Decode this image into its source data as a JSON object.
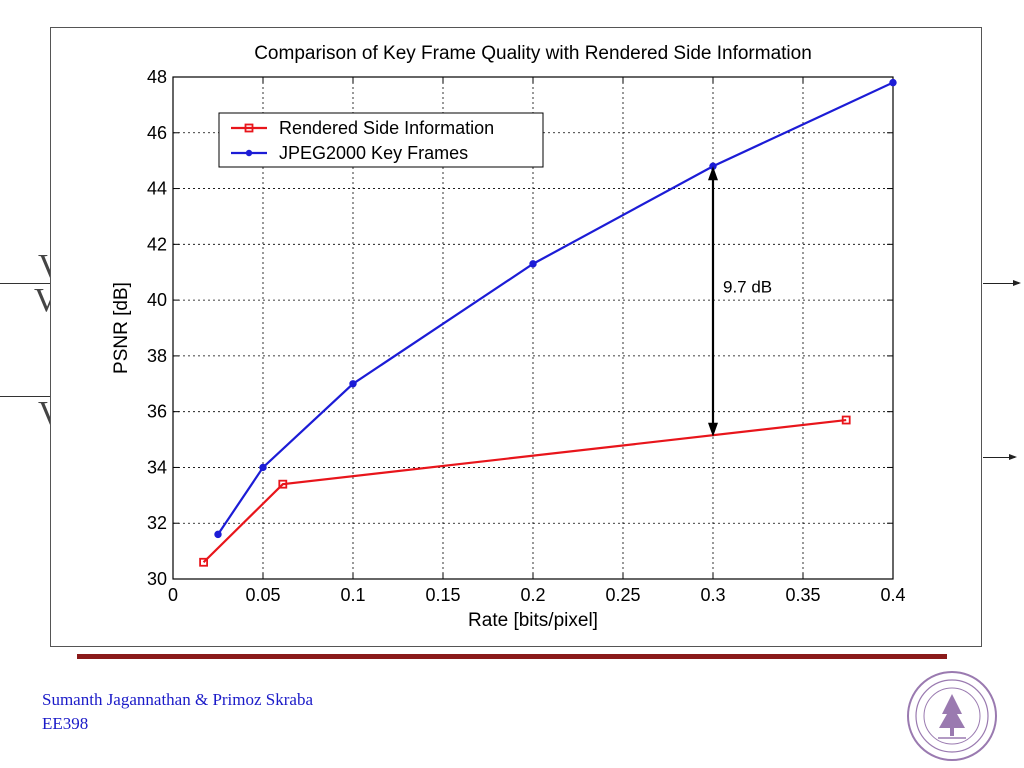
{
  "chart_data": {
    "type": "line",
    "title": "Comparison of Key Frame Quality with Rendered Side Information",
    "xlabel": "Rate [bits/pixel]",
    "ylabel": "PSNR [dB]",
    "xlim": [
      0,
      0.4
    ],
    "ylim": [
      30,
      48
    ],
    "xticks": [
      "0",
      "0.05",
      "0.1",
      "0.15",
      "0.2",
      "0.25",
      "0.3",
      "0.35",
      "0.4"
    ],
    "yticks": [
      "30",
      "32",
      "34",
      "36",
      "38",
      "40",
      "42",
      "44",
      "46",
      "48"
    ],
    "grid": true,
    "legend_position": "top-left",
    "series": [
      {
        "name": "Rendered Side Information",
        "color": "#e8151b",
        "marker": "square",
        "points": [
          [
            0.017,
            30.6
          ],
          [
            0.061,
            33.4
          ],
          [
            0.374,
            35.7
          ]
        ]
      },
      {
        "name": "JPEG2000 Key Frames",
        "color": "#1c1cd6",
        "marker": "circle",
        "points": [
          [
            0.025,
            31.6
          ],
          [
            0.05,
            34.0
          ],
          [
            0.1,
            37.0
          ],
          [
            0.2,
            41.3
          ],
          [
            0.3,
            44.8
          ],
          [
            0.4,
            47.8
          ]
        ]
      }
    ],
    "annotation": {
      "text": "9.7 dB",
      "x": 0.3,
      "y_from": 44.8,
      "y_to": 35.1
    }
  },
  "footer": {
    "authors": "Sumanth Jagannathan & Primoz Skraba",
    "course": "EE398"
  },
  "colors": {
    "footer_bar": "#8a1a1a",
    "footer_text": "#1a1ac8"
  }
}
